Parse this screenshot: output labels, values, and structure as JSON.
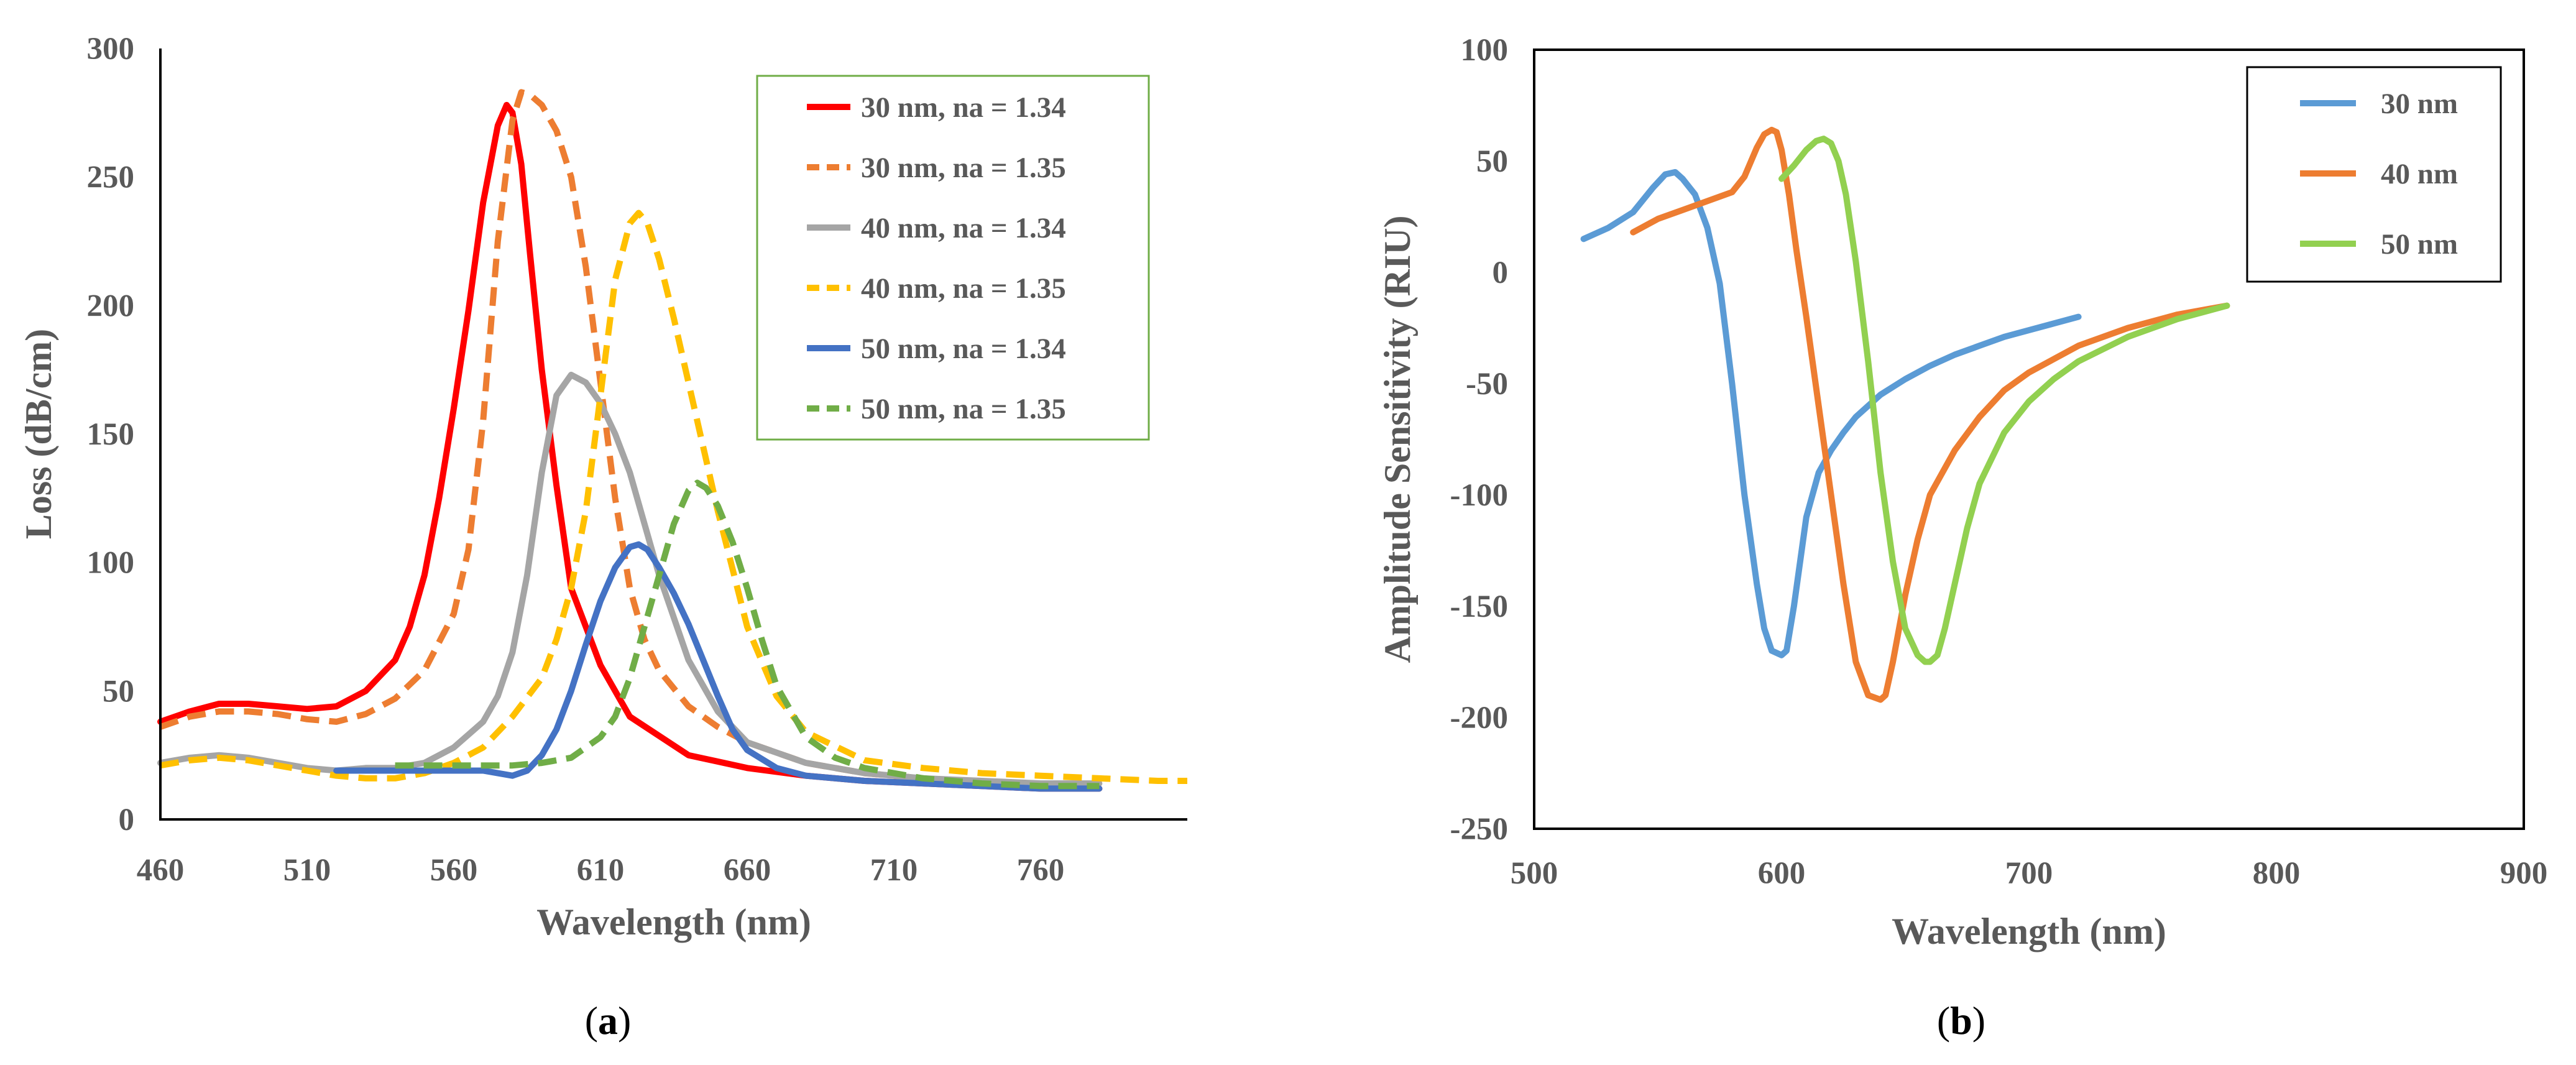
{
  "chart_data": [
    {
      "type": "line",
      "panel": "a",
      "caption": "(a)",
      "caption_letter": "a",
      "xlabel": "Wavelength (nm)",
      "ylabel": "Loss (dB/cm)",
      "xlim": [
        460,
        810
      ],
      "ylim": [
        0,
        300
      ],
      "xticks": [
        "460",
        "510",
        "560",
        "610",
        "660",
        "710",
        "760"
      ],
      "yticks": [
        "0",
        "50",
        "100",
        "150",
        "200",
        "250",
        "300"
      ],
      "legend_position": "top-right",
      "series": [
        {
          "name": "30 nm, na = 1.34",
          "color": "#ff0000",
          "dash": "solid",
          "x": [
            460,
            470,
            480,
            490,
            500,
            510,
            520,
            530,
            540,
            545,
            550,
            555,
            560,
            565,
            570,
            575,
            578,
            580,
            583,
            586,
            590,
            595,
            600,
            610,
            620,
            640,
            660,
            680,
            700,
            720,
            740,
            760,
            780
          ],
          "y": [
            38,
            42,
            45,
            45,
            44,
            43,
            44,
            50,
            62,
            75,
            95,
            125,
            160,
            198,
            240,
            270,
            278,
            275,
            255,
            220,
            175,
            130,
            90,
            60,
            40,
            25,
            20,
            17,
            15,
            14,
            13,
            12,
            12
          ]
        },
        {
          "name": "30 nm, na = 1.35",
          "color": "#ed7d31",
          "dash": "dashed",
          "x": [
            460,
            470,
            480,
            490,
            500,
            510,
            520,
            530,
            540,
            550,
            560,
            565,
            570,
            575,
            580,
            583,
            586,
            590,
            595,
            600,
            605,
            610,
            615,
            620,
            625,
            630,
            640,
            650,
            660,
            680,
            700,
            720,
            740,
            760,
            780
          ],
          "y": [
            36,
            40,
            42,
            42,
            41,
            39,
            38,
            41,
            47,
            58,
            80,
            105,
            155,
            225,
            272,
            283,
            282,
            278,
            268,
            250,
            215,
            170,
            125,
            90,
            70,
            58,
            44,
            36,
            30,
            22,
            18,
            16,
            14,
            13,
            13
          ]
        },
        {
          "name": "40 nm, na = 1.34",
          "color": "#a5a5a5",
          "dash": "solid",
          "x": [
            460,
            470,
            480,
            490,
            500,
            510,
            520,
            530,
            540,
            550,
            560,
            570,
            575,
            580,
            585,
            590,
            595,
            600,
            605,
            610,
            615,
            620,
            625,
            630,
            640,
            650,
            660,
            680,
            700,
            720,
            740,
            760,
            780
          ],
          "y": [
            22,
            24,
            25,
            24,
            22,
            20,
            19,
            20,
            20,
            22,
            28,
            38,
            48,
            65,
            95,
            135,
            165,
            173,
            170,
            162,
            150,
            135,
            115,
            95,
            62,
            42,
            30,
            22,
            18,
            16,
            15,
            14,
            14
          ]
        },
        {
          "name": "40 nm, na = 1.35",
          "color": "#ffc000",
          "dash": "dashed",
          "x": [
            460,
            470,
            480,
            490,
            500,
            510,
            520,
            530,
            540,
            550,
            560,
            570,
            580,
            590,
            595,
            600,
            605,
            610,
            615,
            620,
            623,
            626,
            630,
            635,
            640,
            645,
            650,
            660,
            670,
            680,
            700,
            720,
            740,
            760,
            780,
            800,
            810
          ],
          "y": [
            21,
            23,
            24,
            23,
            21,
            19,
            17,
            16,
            16,
            18,
            22,
            28,
            40,
            55,
            70,
            90,
            120,
            165,
            210,
            232,
            236,
            232,
            218,
            195,
            170,
            145,
            120,
            75,
            48,
            34,
            23,
            20,
            18,
            17,
            16,
            15,
            15
          ]
        },
        {
          "name": "50 nm, na = 1.34",
          "color": "#4472c4",
          "dash": "solid",
          "x": [
            520,
            530,
            540,
            550,
            560,
            570,
            575,
            580,
            585,
            590,
            595,
            600,
            605,
            610,
            615,
            620,
            623,
            626,
            630,
            635,
            640,
            645,
            650,
            655,
            660,
            670,
            680,
            700,
            720,
            740,
            760,
            780
          ],
          "y": [
            19,
            19,
            19,
            19,
            19,
            19,
            18,
            17,
            19,
            25,
            35,
            50,
            68,
            85,
            98,
            106,
            107,
            105,
            98,
            88,
            76,
            62,
            48,
            35,
            27,
            20,
            17,
            15,
            14,
            13,
            12,
            12
          ]
        },
        {
          "name": "50 nm, na = 1.35",
          "color": "#70ad47",
          "dash": "dashed",
          "x": [
            540,
            550,
            560,
            570,
            580,
            590,
            600,
            610,
            615,
            620,
            625,
            630,
            635,
            640,
            643,
            646,
            650,
            655,
            660,
            665,
            670,
            680,
            690,
            700,
            720,
            740,
            760,
            780
          ],
          "y": [
            21,
            21,
            21,
            21,
            21,
            22,
            24,
            32,
            40,
            55,
            75,
            95,
            115,
            128,
            131,
            129,
            122,
            108,
            90,
            70,
            52,
            32,
            24,
            20,
            16,
            14,
            13,
            13
          ]
        }
      ]
    },
    {
      "type": "line",
      "panel": "b",
      "caption": "(b)",
      "caption_letter": "b",
      "xlabel": "Wavelength (nm)",
      "ylabel": "Amplitude Sensitivity (RIU)",
      "xlim": [
        500,
        900
      ],
      "ylim": [
        -250,
        100
      ],
      "xticks": [
        "500",
        "600",
        "700",
        "800",
        "900"
      ],
      "yticks": [
        "-250",
        "-200",
        "-150",
        "-100",
        "-50",
        "0",
        "50",
        "100"
      ],
      "legend_position": "top-right",
      "series": [
        {
          "name": "30 nm",
          "color": "#5b9bd5",
          "x": [
            520,
            530,
            540,
            548,
            553,
            557,
            560,
            565,
            570,
            575,
            580,
            585,
            590,
            593,
            596,
            600,
            602,
            605,
            610,
            615,
            620,
            625,
            630,
            640,
            650,
            660,
            670,
            680,
            690,
            700,
            710,
            720
          ],
          "y": [
            15,
            20,
            27,
            38,
            44,
            45,
            42,
            35,
            20,
            -5,
            -50,
            -100,
            -140,
            -160,
            -170,
            -172,
            -170,
            -150,
            -110,
            -90,
            -80,
            -72,
            -65,
            -55,
            -48,
            -42,
            -37,
            -33,
            -29,
            -26,
            -23,
            -20
          ]
        },
        {
          "name": "40 nm",
          "color": "#ed7d31",
          "x": [
            540,
            550,
            560,
            570,
            580,
            585,
            590,
            593,
            596,
            598,
            600,
            603,
            606,
            610,
            615,
            620,
            625,
            630,
            635,
            640,
            642,
            645,
            650,
            655,
            660,
            670,
            680,
            690,
            700,
            720,
            740,
            760,
            780
          ],
          "y": [
            18,
            24,
            28,
            32,
            36,
            43,
            56,
            62,
            64,
            63,
            55,
            35,
            10,
            -20,
            -60,
            -100,
            -140,
            -175,
            -190,
            -192,
            -190,
            -175,
            -145,
            -120,
            -100,
            -80,
            -65,
            -53,
            -45,
            -33,
            -25,
            -19,
            -15
          ]
        },
        {
          "name": "50 nm",
          "color": "#92d050",
          "x": [
            600,
            605,
            610,
            614,
            617,
            620,
            623,
            626,
            630,
            635,
            640,
            645,
            650,
            655,
            658,
            660,
            663,
            666,
            670,
            675,
            680,
            690,
            700,
            710,
            720,
            740,
            760,
            780
          ],
          "y": [
            42,
            48,
            55,
            59,
            60,
            58,
            50,
            35,
            5,
            -40,
            -90,
            -130,
            -160,
            -172,
            -175,
            -175,
            -172,
            -160,
            -140,
            -115,
            -95,
            -72,
            -58,
            -48,
            -40,
            -29,
            -21,
            -15
          ]
        }
      ]
    }
  ]
}
